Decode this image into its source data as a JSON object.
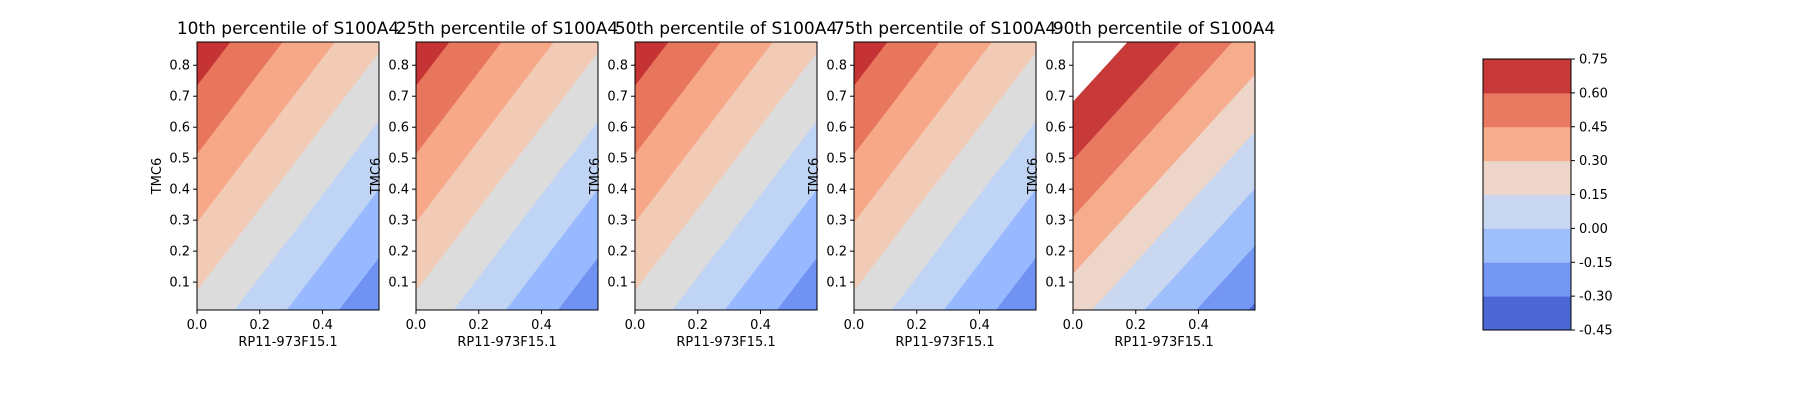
{
  "chart_data": {
    "type": "heatmap",
    "subtype": "filled-contour",
    "colormap": "coolwarm",
    "levels": [
      -0.45,
      -0.3,
      -0.15,
      0.0,
      0.15,
      0.3,
      0.45,
      0.6,
      0.75
    ],
    "level_labels": [
      "-0.45",
      "-0.30",
      "-0.15",
      "0.00",
      "0.15",
      "0.30",
      "0.45",
      "0.60",
      "0.75"
    ],
    "level_colors": [
      "#4d67d7",
      "#7597f4",
      "#9fbefc",
      "#c9d7f0",
      "#edd5c9",
      "#f6ad8e",
      "#e97a61",
      "#c83a39"
    ],
    "xlim": [
      0,
      0.58
    ],
    "ylim": [
      0.01,
      0.875
    ],
    "xticks": [
      0.0,
      0.2,
      0.4
    ],
    "xtick_labels": [
      "0.0",
      "0.2",
      "0.4"
    ],
    "yticks": [
      0.1,
      0.2,
      0.3,
      0.4,
      0.5,
      0.6,
      0.7,
      0.8
    ],
    "ytick_labels": [
      "0.1",
      "0.2",
      "0.3",
      "0.4",
      "0.5",
      "0.6",
      "0.7",
      "0.8"
    ],
    "panels": [
      {
        "title": "10th percentile of S100A4",
        "xlabel": "RP11-973F15.1",
        "ylabel": "TMC6",
        "z_corners": {
          "x0y0": 0.107,
          "x1y0": -0.416,
          "x0y1": 0.695,
          "x1y1": 0.172
        },
        "band_colors": [
          "#3b4cc0",
          "#6f92f3",
          "#98b9ff",
          "#c0d4f5",
          "#dddcdc",
          "#f2cbb7",
          "#f7a889",
          "#e8765c",
          "#c53334"
        ]
      },
      {
        "title": "25th percentile of S100A4",
        "xlabel": "RP11-973F15.1",
        "ylabel": "TMC6",
        "z_corners": {
          "x0y0": 0.107,
          "x1y0": -0.416,
          "x0y1": 0.695,
          "x1y1": 0.172
        },
        "band_colors": [
          "#3b4cc0",
          "#6f92f3",
          "#98b9ff",
          "#c0d4f5",
          "#dddcdc",
          "#f2cbb7",
          "#f7a889",
          "#e8765c",
          "#c53334"
        ]
      },
      {
        "title": "50th percentile of S100A4",
        "xlabel": "RP11-973F15.1",
        "ylabel": "TMC6",
        "z_corners": {
          "x0y0": 0.107,
          "x1y0": -0.416,
          "x0y1": 0.695,
          "x1y1": 0.172
        },
        "band_colors": [
          "#3b4cc0",
          "#6f92f3",
          "#98b9ff",
          "#c0d4f5",
          "#dddcdc",
          "#f2cbb7",
          "#f7a889",
          "#e8765c",
          "#c53334"
        ]
      },
      {
        "title": "75th percentile of S100A4",
        "xlabel": "RP11-973F15.1",
        "ylabel": "TMC6",
        "z_corners": {
          "x0y0": 0.107,
          "x1y0": -0.416,
          "x0y1": 0.695,
          "x1y1": 0.172
        },
        "band_colors": [
          "#3b4cc0",
          "#6f92f3",
          "#98b9ff",
          "#c0d4f5",
          "#dddcdc",
          "#f2cbb7",
          "#f7a889",
          "#e8765c",
          "#c53334"
        ]
      },
      {
        "title": "90th percentile of S100A4",
        "xlabel": "RP11-973F15.1",
        "ylabel": "TMC6",
        "z_corners": {
          "x0y0": 0.054,
          "x1y0": -0.47,
          "x0y1": 0.758,
          "x1y1": 0.234
        },
        "band_colors": [
          "#4d67d7",
          "#7597f4",
          "#9fbefc",
          "#c9d7f0",
          "#edd5c9",
          "#f6ad8e",
          "#e97a61",
          "#c83a39"
        ]
      }
    ]
  }
}
